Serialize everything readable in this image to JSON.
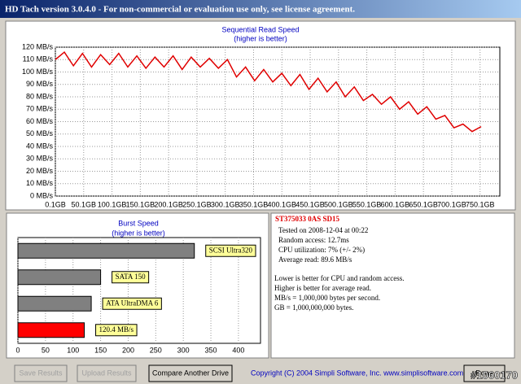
{
  "window_title": "HD Tach version 3.0.4.0  - For non-commercial or evaluation use only, see license agreement.",
  "chart_data": [
    {
      "type": "line",
      "title": "Sequential Read Speed",
      "subtitle": "(higher is better)",
      "x": [
        0.1,
        16,
        32,
        48,
        64,
        80,
        96,
        112,
        128,
        144,
        160,
        176,
        192,
        208,
        224,
        240,
        256,
        272,
        288,
        304,
        320,
        336,
        352,
        368,
        384,
        400,
        416,
        432,
        448,
        464,
        480,
        496,
        512,
        528,
        544,
        560,
        576,
        592,
        608,
        624,
        640,
        656,
        672,
        688,
        704,
        720,
        736,
        752
      ],
      "series": [
        {
          "name": "Read speed",
          "color": "#e00000",
          "values": [
            110,
            116,
            105,
            115,
            104,
            114,
            106,
            115,
            104,
            113,
            103,
            112,
            104,
            113,
            102,
            112,
            104,
            111,
            103,
            110,
            96,
            104,
            93,
            102,
            92,
            99,
            89,
            98,
            86,
            95,
            84,
            92,
            80,
            88,
            77,
            82,
            74,
            80,
            70,
            76,
            66,
            72,
            62,
            65,
            55,
            58,
            52,
            56
          ]
        }
      ],
      "xlim": [
        0.1,
        785
      ],
      "ylim": [
        0,
        120
      ],
      "xticks": [
        {
          "value": 0.1,
          "label": "0.1GB"
        },
        {
          "value": 50.1,
          "label": "50.1GB"
        },
        {
          "value": 100.1,
          "label": "100.1GB"
        },
        {
          "value": 150.1,
          "label": "150.1GB"
        },
        {
          "value": 200.1,
          "label": "200.1GB"
        },
        {
          "value": 250.1,
          "label": "250.1GB"
        },
        {
          "value": 300.1,
          "label": "300.1GB"
        },
        {
          "value": 350.1,
          "label": "350.1GB"
        },
        {
          "value": 400.1,
          "label": "400.1GB"
        },
        {
          "value": 450.1,
          "label": "450.1GB"
        },
        {
          "value": 500.1,
          "label": "500.1GB"
        },
        {
          "value": 550.1,
          "label": "550.1GB"
        },
        {
          "value": 600.1,
          "label": "600.1GB"
        },
        {
          "value": 650.1,
          "label": "650.1GB"
        },
        {
          "value": 700.1,
          "label": "700.1GB"
        },
        {
          "value": 750.1,
          "label": "750.1GB"
        }
      ],
      "yticks": [
        {
          "value": 0,
          "label": "0 MB/s"
        },
        {
          "value": 10,
          "label": "10 MB/s"
        },
        {
          "value": 20,
          "label": "20 MB/s"
        },
        {
          "value": 30,
          "label": "30 MB/s"
        },
        {
          "value": 40,
          "label": "40 MB/s"
        },
        {
          "value": 50,
          "label": "50 MB/s"
        },
        {
          "value": 60,
          "label": "60 MB/s"
        },
        {
          "value": 70,
          "label": "70 MB/s"
        },
        {
          "value": 80,
          "label": "80 MB/s"
        },
        {
          "value": 90,
          "label": "90 MB/s"
        },
        {
          "value": 100,
          "label": "100 MB/s"
        },
        {
          "value": 110,
          "label": "110 MB/s"
        },
        {
          "value": 120,
          "label": "120 MB/s"
        }
      ],
      "grid": true
    },
    {
      "type": "hbar",
      "title": "Burst Speed",
      "subtitle": "(higher is better)",
      "categories": [
        "SCSI Ultra320",
        "SATA 150",
        "ATA UltraDMA 6",
        null
      ],
      "values": [
        320,
        150,
        133,
        120.4
      ],
      "value_labels": [
        null,
        null,
        null,
        "120.4 MB/s"
      ],
      "colors": [
        "#808080",
        "#808080",
        "#808080",
        "#ff0000"
      ],
      "xlim": [
        0,
        440
      ],
      "xticks": [
        0,
        50,
        100,
        150,
        200,
        250,
        300,
        350,
        400
      ],
      "grid": true
    }
  ],
  "info": {
    "drive": "ST375033 0AS SD15",
    "stats": [
      "Tested on 2008-12-04 at 00:22",
      "Random access: 12.7ms",
      "CPU utilization: 7% (+/- 2%)",
      "Average read: 89.6 MB/s"
    ],
    "notes": [
      "Lower is better for CPU and random access.",
      "Higher is better for average read.",
      "MB/s = 1,000,000 bytes per second.",
      "GB = 1,000,000,000 bytes."
    ]
  },
  "buttons": [
    "Save Results",
    "Upload Results",
    "Compare Another Drive",
    "Done"
  ],
  "copyright": "Copyright (C) 2004 Simpli Software, Inc. www.simplisoftware.com",
  "watermark": "#1060170"
}
